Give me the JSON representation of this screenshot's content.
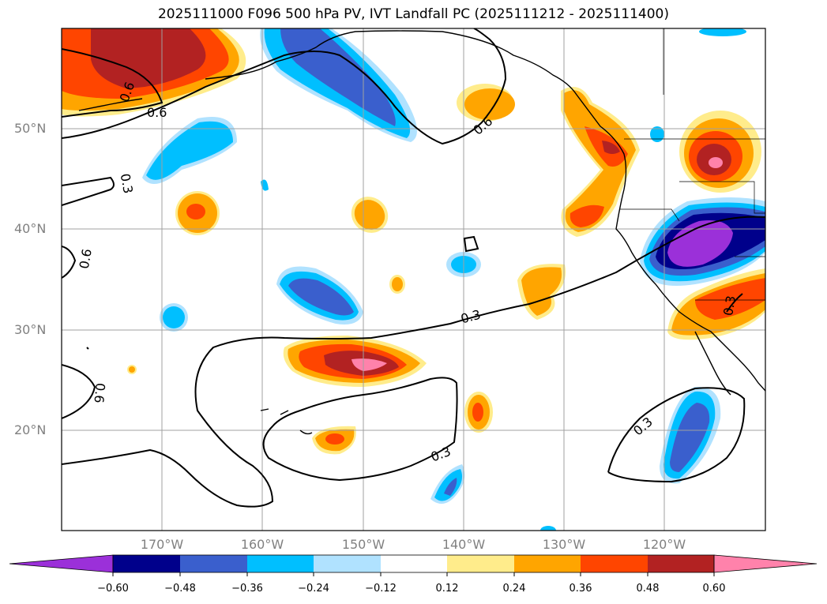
{
  "title": "2025111000 F096 500 hPa PV, IVT Landfall PC (2025111212 - 2025111400)",
  "lat_labels": [
    "50°N",
    "40°N",
    "30°N",
    "20°N"
  ],
  "lon_labels": [
    "170°W",
    "160°W",
    "150°W",
    "140°W",
    "130°W",
    "120°W"
  ],
  "contour_labels": [
    "0.6",
    "0.6",
    "0.6",
    "0.3",
    "0.6",
    "0.3",
    "0.3",
    "0.3",
    "0.6",
    "0.3"
  ],
  "colorbar": {
    "ticks": [
      "−0.60",
      "−0.48",
      "−0.36",
      "−0.24",
      "−0.12",
      "0.12",
      "0.24",
      "0.36",
      "0.48",
      "0.60"
    ],
    "colors": [
      "#9b30d9",
      "#00008b",
      "#3a5fcd",
      "#00bfff",
      "#b0e2ff",
      "#ffffff",
      "#ffec8b",
      "#ffa500",
      "#ff4500",
      "#b22222",
      "#ff82ab"
    ]
  },
  "chart_data": {
    "type": "map",
    "title": "2025111000 F096 500 hPa PV, IVT Landfall PC (2025111212 - 2025111400)",
    "extent": {
      "lon": [
        -180,
        -110
      ],
      "lat": [
        10,
        60
      ]
    },
    "field": "IVT Landfall PC (shaded)",
    "contours": "500 hPa PV (black lines)",
    "contour_levels": [
      0.3,
      0.6
    ],
    "colorbar_levels": [
      -0.6,
      -0.48,
      -0.36,
      -0.24,
      -0.12,
      0.12,
      0.24,
      0.36,
      0.48,
      0.6
    ],
    "colorbar_extend": "both"
  }
}
